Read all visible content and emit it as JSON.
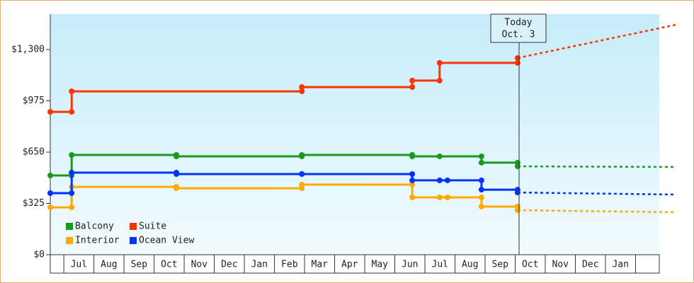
{
  "chart_data": {
    "type": "step-line",
    "ylim": [
      0,
      1524
    ],
    "yticks": [
      {
        "value": 0,
        "label": "$0"
      },
      {
        "value": 325,
        "label": "$325"
      },
      {
        "value": 650,
        "label": "$650"
      },
      {
        "value": 975,
        "label": "$975"
      },
      {
        "value": 1300,
        "label": "$1,300"
      }
    ],
    "xlim": [
      -0.45,
      19.79
    ],
    "xticks": [
      {
        "value": 0,
        "label": "Jul"
      },
      {
        "value": 1,
        "label": "Aug"
      },
      {
        "value": 2,
        "label": "Sep"
      },
      {
        "value": 3,
        "label": "Oct"
      },
      {
        "value": 4,
        "label": "Nov"
      },
      {
        "value": 5,
        "label": "Dec"
      },
      {
        "value": 6,
        "label": "Jan"
      },
      {
        "value": 7,
        "label": "Feb"
      },
      {
        "value": 8,
        "label": "Mar"
      },
      {
        "value": 9,
        "label": "Apr"
      },
      {
        "value": 10,
        "label": "May"
      },
      {
        "value": 11,
        "label": "Jun"
      },
      {
        "value": 12,
        "label": "Jul"
      },
      {
        "value": 13,
        "label": "Aug"
      },
      {
        "value": 14,
        "label": "Sep"
      },
      {
        "value": 15,
        "label": "Oct"
      },
      {
        "value": 16,
        "label": "Nov"
      },
      {
        "value": 17,
        "label": "Dec"
      },
      {
        "value": 18,
        "label": "Jan"
      }
    ],
    "today": {
      "x": 15.13,
      "label": [
        "Today",
        "Oct. 3"
      ]
    },
    "legend": "bottom-left",
    "series": [
      {
        "name": "Balcony",
        "color": "#1a9a1a",
        "x": [
          -0.45,
          0.26,
          0.26,
          3.74,
          3.74,
          7.91,
          7.91,
          11.58,
          11.58,
          12.49,
          13.88,
          13.88,
          15.08,
          15.08
        ],
        "values": [
          502,
          502,
          632,
          632,
          623,
          623,
          632,
          632,
          623,
          623,
          623,
          583,
          583,
          560
        ],
        "forecast_x": [
          15.08,
          20.35
        ],
        "forecast_values": [
          560,
          556
        ]
      },
      {
        "name": "Suite",
        "color": "#ff3300",
        "x": [
          -0.45,
          0.26,
          0.26,
          7.91,
          7.91,
          11.58,
          11.58,
          12.49,
          12.49,
          15.08,
          15.08
        ],
        "values": [
          905,
          905,
          1035,
          1035,
          1062,
          1062,
          1103,
          1103,
          1215,
          1215,
          1246
        ],
        "forecast_x": [
          15.08,
          20.35
        ],
        "forecast_values": [
          1246,
          1457
        ]
      },
      {
        "name": "Interior",
        "color": "#ffaa00",
        "x": [
          -0.45,
          0.26,
          0.26,
          3.74,
          3.74,
          7.91,
          7.91,
          11.58,
          11.58,
          12.49,
          12.75,
          13.88,
          13.88,
          15.08,
          15.08
        ],
        "values": [
          300,
          300,
          430,
          430,
          421,
          421,
          444,
          444,
          363,
          363,
          363,
          363,
          305,
          305,
          282
        ],
        "forecast_x": [
          15.08,
          20.35
        ],
        "forecast_values": [
          282,
          269
        ]
      },
      {
        "name": "Ocean View",
        "color": "#0033ff",
        "x": [
          -0.45,
          0.26,
          0.26,
          3.74,
          3.74,
          7.91,
          11.58,
          11.58,
          12.49,
          12.75,
          13.88,
          13.88,
          15.08,
          15.08
        ],
        "values": [
          390,
          390,
          520,
          520,
          511,
          511,
          511,
          471,
          471,
          471,
          471,
          412,
          412,
          394
        ],
        "forecast_x": [
          15.08,
          20.35
        ],
        "forecast_values": [
          394,
          381
        ]
      }
    ]
  }
}
